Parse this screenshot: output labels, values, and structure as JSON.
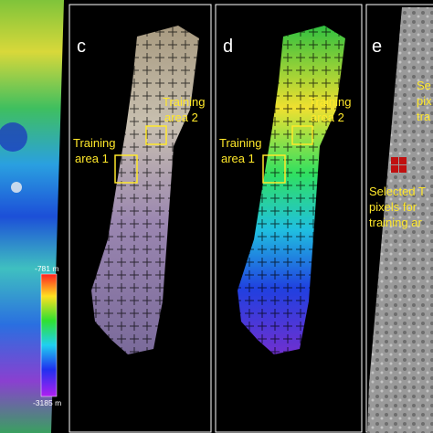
{
  "colorbar": {
    "max": "-781 m",
    "min": "-3185 m"
  },
  "panels": [
    {
      "label": "c",
      "annotations": [
        [
          "Training",
          "area 2"
        ],
        [
          "Training",
          "area 1"
        ]
      ]
    },
    {
      "label": "d",
      "annotations": [
        [
          "Training",
          "area 2"
        ],
        [
          "Training",
          "area 1"
        ]
      ]
    },
    {
      "label": "e",
      "annotations": [
        [
          "Se",
          "pix",
          "tra"
        ],
        [
          "Selected T",
          "pixels for",
          "training ar"
        ]
      ]
    }
  ]
}
